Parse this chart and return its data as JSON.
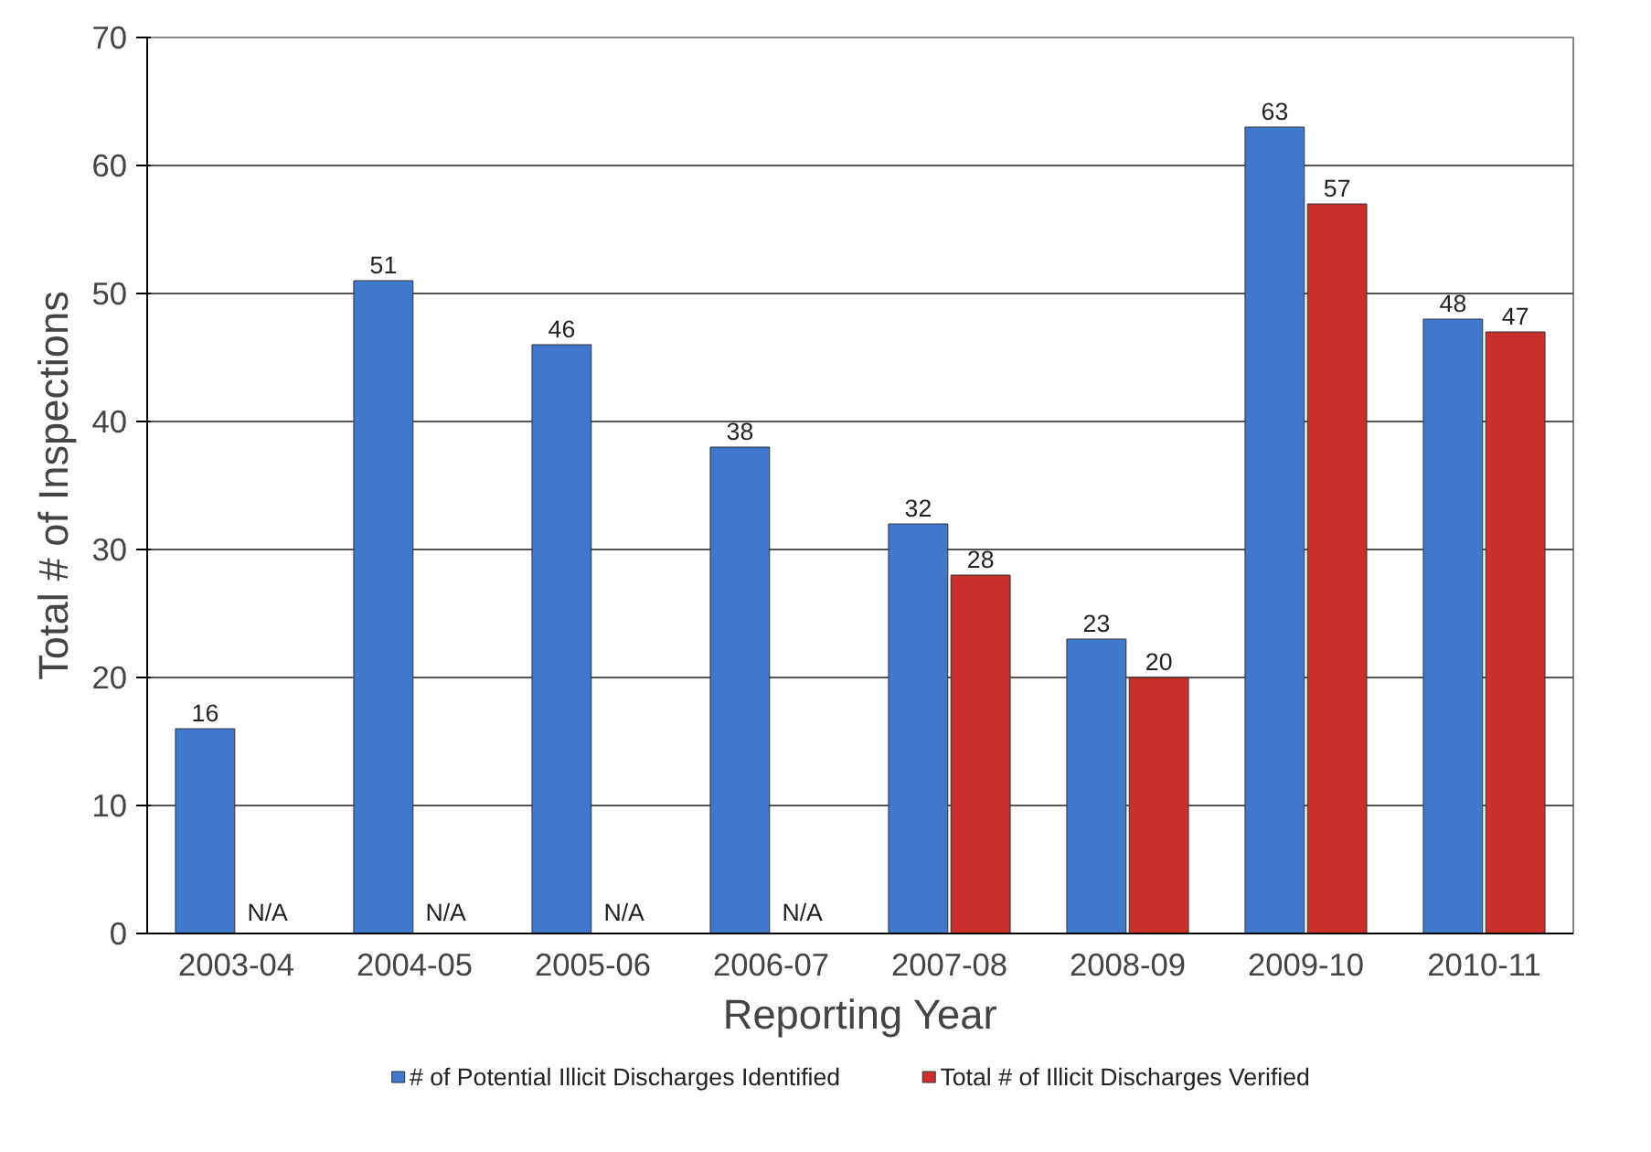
{
  "chart_data": {
    "type": "bar",
    "xlabel": "Reporting Year",
    "ylabel": "Total # of Inspections",
    "categories": [
      "2003-04",
      "2004-05",
      "2005-06",
      "2006-07",
      "2007-08",
      "2008-09",
      "2009-10",
      "2010-11"
    ],
    "series": [
      {
        "name": "# of Potential Illicit Discharges Identified",
        "color": "#3f78cc",
        "values": [
          16,
          51,
          46,
          38,
          32,
          23,
          63,
          48
        ],
        "value_labels": [
          "16",
          "51",
          "46",
          "38",
          "32",
          "23",
          "63",
          "48"
        ]
      },
      {
        "name": "Total # of Illicit Discharges Verified",
        "color": "#c9302c",
        "values": [
          null,
          null,
          null,
          null,
          28,
          20,
          57,
          47
        ],
        "value_labels": [
          "N/A",
          "N/A",
          "N/A",
          "N/A",
          "28",
          "20",
          "57",
          "47"
        ]
      }
    ],
    "ylim": [
      0,
      70
    ],
    "yticks": [
      0,
      10,
      20,
      30,
      40,
      50,
      60,
      70
    ],
    "grid": "y",
    "legend": "bottom"
  }
}
